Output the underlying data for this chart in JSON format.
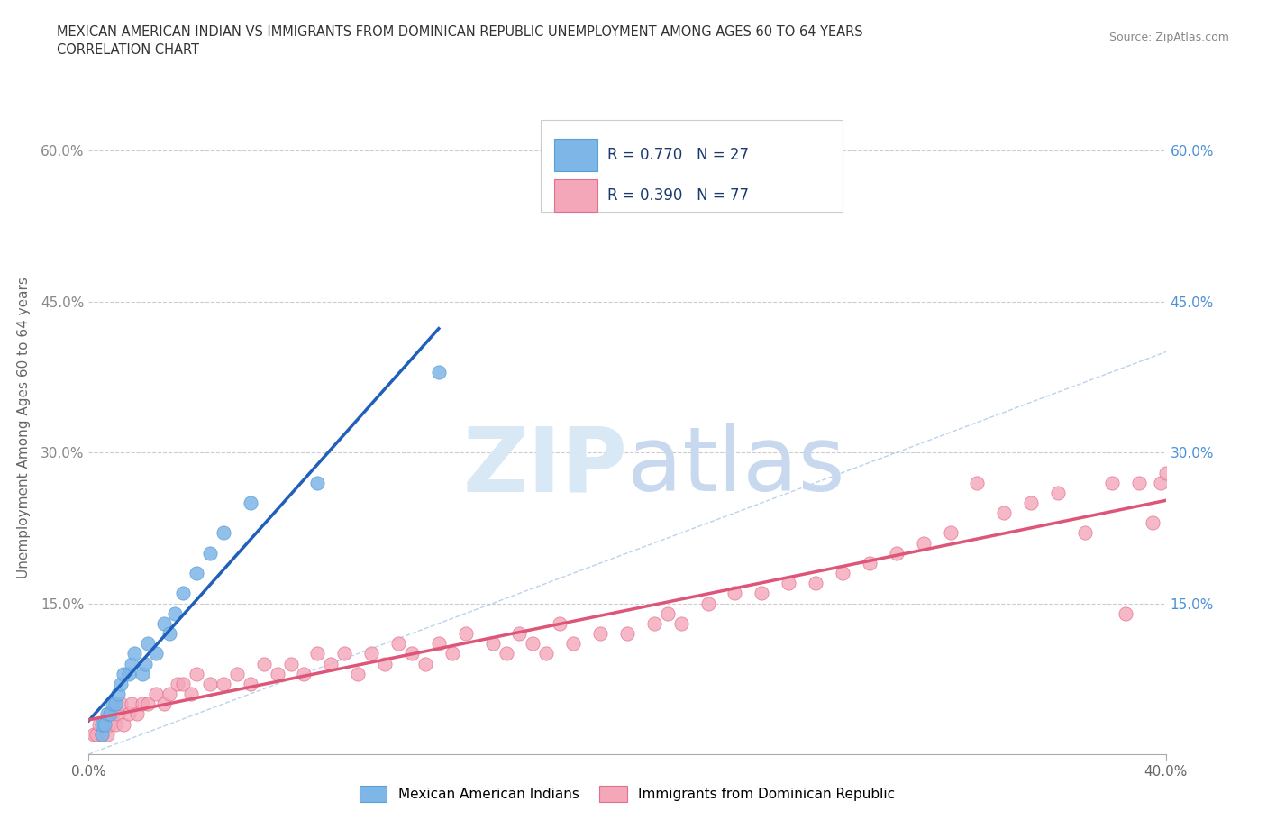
{
  "title_line1": "MEXICAN AMERICAN INDIAN VS IMMIGRANTS FROM DOMINICAN REPUBLIC UNEMPLOYMENT AMONG AGES 60 TO 64 YEARS",
  "title_line2": "CORRELATION CHART",
  "source": "Source: ZipAtlas.com",
  "ylabel": "Unemployment Among Ages 60 to 64 years",
  "xlim": [
    0.0,
    0.4
  ],
  "ylim": [
    0.0,
    0.65
  ],
  "x_ticks": [
    0.0,
    0.4
  ],
  "x_tick_labels": [
    "0.0%",
    "40.0%"
  ],
  "y_ticks_left": [
    0.0,
    0.15,
    0.3,
    0.45,
    0.6
  ],
  "y_tick_labels_left": [
    "",
    "15.0%",
    "30.0%",
    "45.0%",
    "60.0%"
  ],
  "y_ticks_right": [
    0.15,
    0.3,
    0.45,
    0.6
  ],
  "y_tick_labels_right": [
    "15.0%",
    "30.0%",
    "45.0%",
    "60.0%"
  ],
  "blue_color": "#7EB6E8",
  "blue_edge": "#5A9FD4",
  "pink_color": "#F4A7B9",
  "pink_edge": "#E07090",
  "blue_line_color": "#2060BB",
  "pink_line_color": "#DD5577",
  "diagonal_color": "#A8C8E8",
  "watermark_color": "#D8E8F5",
  "R_blue": 0.77,
  "N_blue": 27,
  "R_pink": 0.39,
  "N_pink": 77,
  "blue_x": [
    0.005,
    0.005,
    0.006,
    0.007,
    0.008,
    0.009,
    0.01,
    0.011,
    0.012,
    0.013,
    0.015,
    0.016,
    0.017,
    0.02,
    0.021,
    0.022,
    0.025,
    0.028,
    0.03,
    0.032,
    0.035,
    0.04,
    0.045,
    0.05,
    0.06,
    0.085,
    0.13
  ],
  "blue_y": [
    0.02,
    0.03,
    0.03,
    0.04,
    0.04,
    0.05,
    0.05,
    0.06,
    0.07,
    0.08,
    0.08,
    0.09,
    0.1,
    0.08,
    0.09,
    0.11,
    0.1,
    0.13,
    0.12,
    0.14,
    0.16,
    0.18,
    0.2,
    0.22,
    0.25,
    0.27,
    0.38
  ],
  "pink_x": [
    0.002,
    0.003,
    0.004,
    0.005,
    0.006,
    0.007,
    0.008,
    0.009,
    0.01,
    0.011,
    0.012,
    0.013,
    0.015,
    0.016,
    0.018,
    0.02,
    0.022,
    0.025,
    0.028,
    0.03,
    0.033,
    0.035,
    0.038,
    0.04,
    0.045,
    0.05,
    0.055,
    0.06,
    0.065,
    0.07,
    0.075,
    0.08,
    0.085,
    0.09,
    0.095,
    0.1,
    0.105,
    0.11,
    0.115,
    0.12,
    0.125,
    0.13,
    0.135,
    0.14,
    0.15,
    0.155,
    0.16,
    0.165,
    0.17,
    0.175,
    0.18,
    0.19,
    0.2,
    0.21,
    0.215,
    0.22,
    0.23,
    0.24,
    0.25,
    0.26,
    0.27,
    0.28,
    0.29,
    0.3,
    0.31,
    0.32,
    0.33,
    0.34,
    0.35,
    0.36,
    0.37,
    0.38,
    0.385,
    0.39,
    0.395,
    0.398,
    0.4
  ],
  "pink_y": [
    0.02,
    0.02,
    0.03,
    0.02,
    0.03,
    0.02,
    0.03,
    0.04,
    0.03,
    0.04,
    0.05,
    0.03,
    0.04,
    0.05,
    0.04,
    0.05,
    0.05,
    0.06,
    0.05,
    0.06,
    0.07,
    0.07,
    0.06,
    0.08,
    0.07,
    0.07,
    0.08,
    0.07,
    0.09,
    0.08,
    0.09,
    0.08,
    0.1,
    0.09,
    0.1,
    0.08,
    0.1,
    0.09,
    0.11,
    0.1,
    0.09,
    0.11,
    0.1,
    0.12,
    0.11,
    0.1,
    0.12,
    0.11,
    0.1,
    0.13,
    0.11,
    0.12,
    0.12,
    0.13,
    0.14,
    0.13,
    0.15,
    0.16,
    0.16,
    0.17,
    0.17,
    0.18,
    0.19,
    0.2,
    0.21,
    0.22,
    0.27,
    0.24,
    0.25,
    0.26,
    0.22,
    0.27,
    0.14,
    0.27,
    0.23,
    0.27,
    0.28
  ]
}
